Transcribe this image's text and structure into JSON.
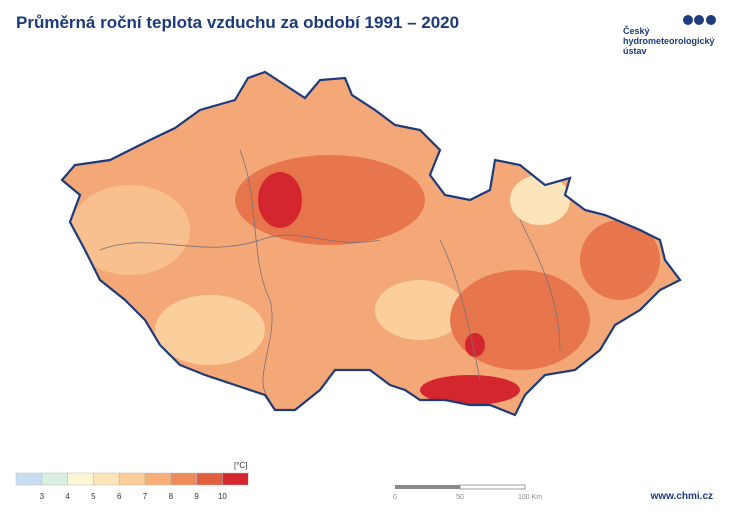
{
  "header": {
    "title": "Průměrná roční teplota vzduchu za období 1991 – 2020",
    "logo_lines": [
      "Český",
      "hydrometeorologický",
      "ústav"
    ]
  },
  "legend": {
    "unit": "[°C]",
    "labels": [
      "3",
      "4",
      "5",
      "6",
      "7",
      "8",
      "9",
      "10"
    ],
    "colors": [
      "#c9def2",
      "#d8efe1",
      "#fdf6d6",
      "#fde4bb",
      "#fbcd98",
      "#f7ae77",
      "#ef8a5a",
      "#e2603e",
      "#d4262e"
    ]
  },
  "scale_bar": {
    "labels": [
      "0",
      "50",
      "100 Km"
    ]
  },
  "footer": {
    "url": "www.chmi.cz"
  }
}
